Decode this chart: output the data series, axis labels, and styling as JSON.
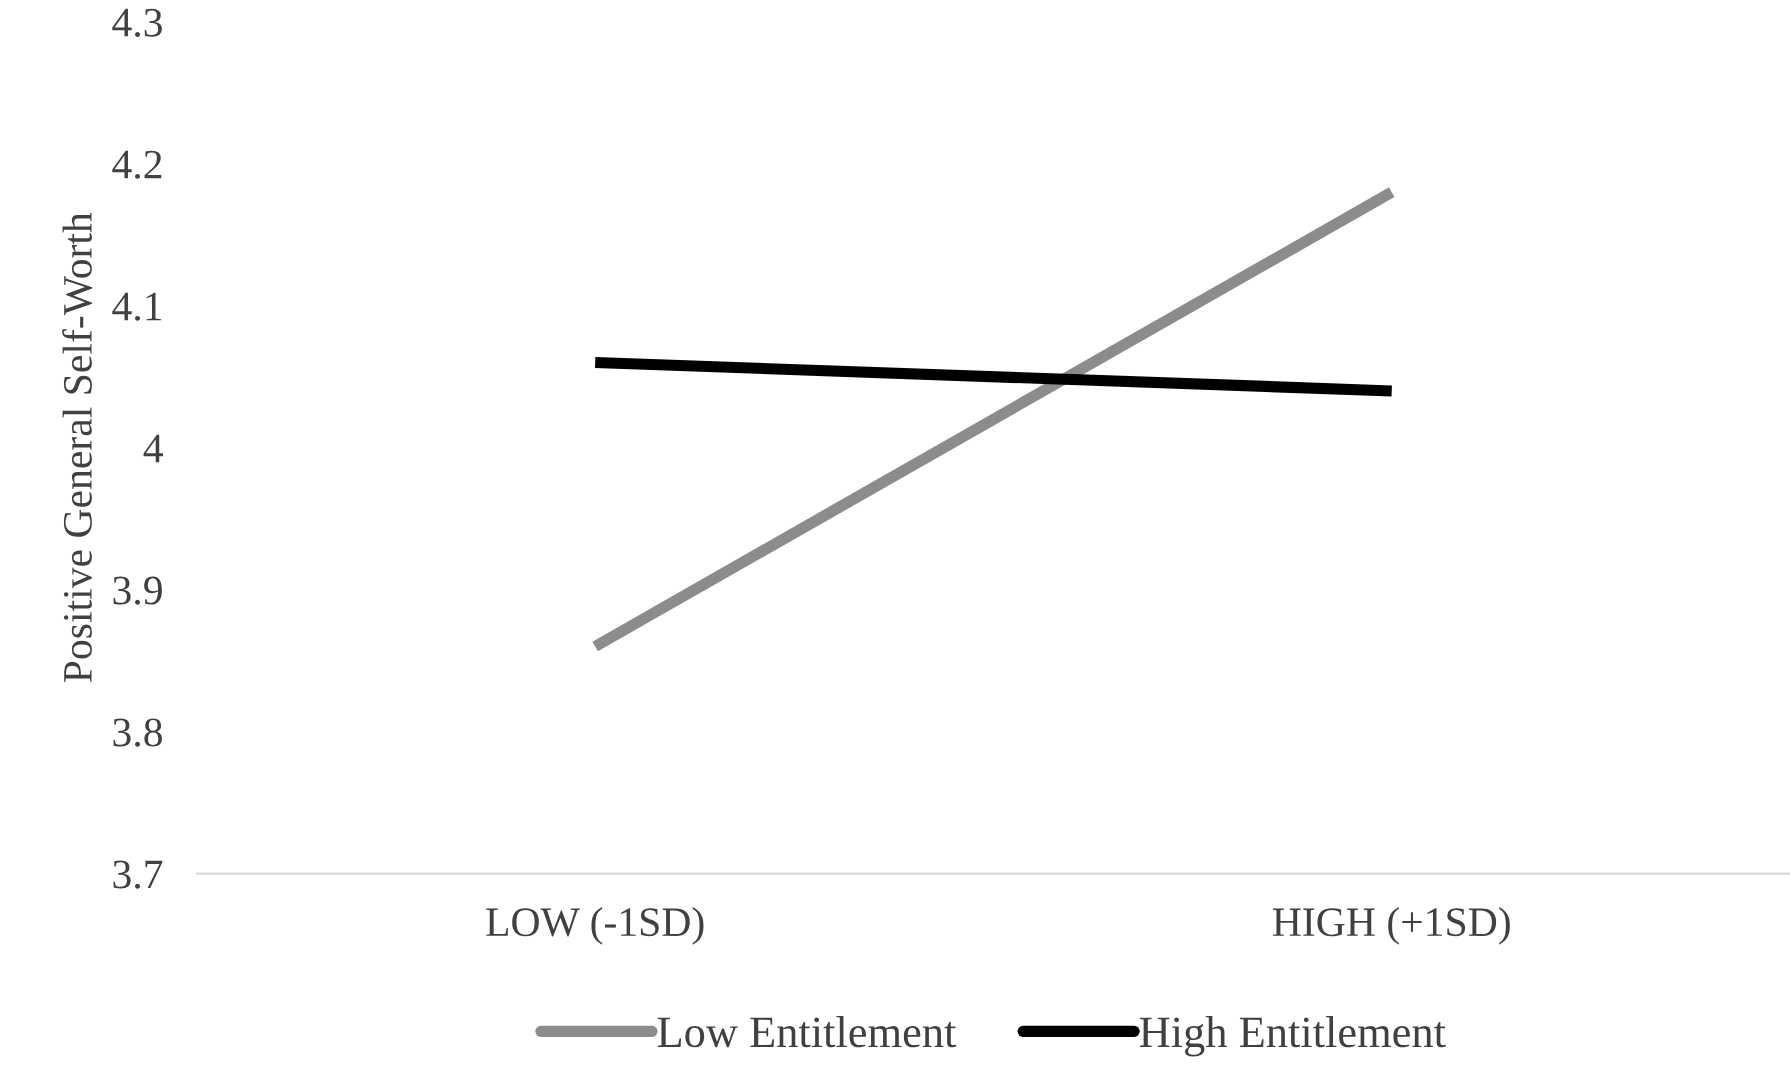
{
  "chart_data": {
    "type": "line",
    "ylabel": "Positive General Self-Worth",
    "categories": [
      "LOW (-1SD)",
      "HIGH (+1SD)"
    ],
    "series": [
      {
        "name": "Low Entitlement",
        "color": "#8c8c8c",
        "values": [
          3.86,
          4.18
        ]
      },
      {
        "name": "High Entitlement",
        "color": "#000000",
        "values": [
          4.06,
          4.04
        ]
      }
    ],
    "ylim": [
      3.7,
      4.3
    ],
    "yticks": [
      3.7,
      3.8,
      3.9,
      4,
      4.1,
      4.2,
      4.3
    ],
    "grid": false,
    "legend": "bottom",
    "marker": "none",
    "line_style": "solid"
  }
}
